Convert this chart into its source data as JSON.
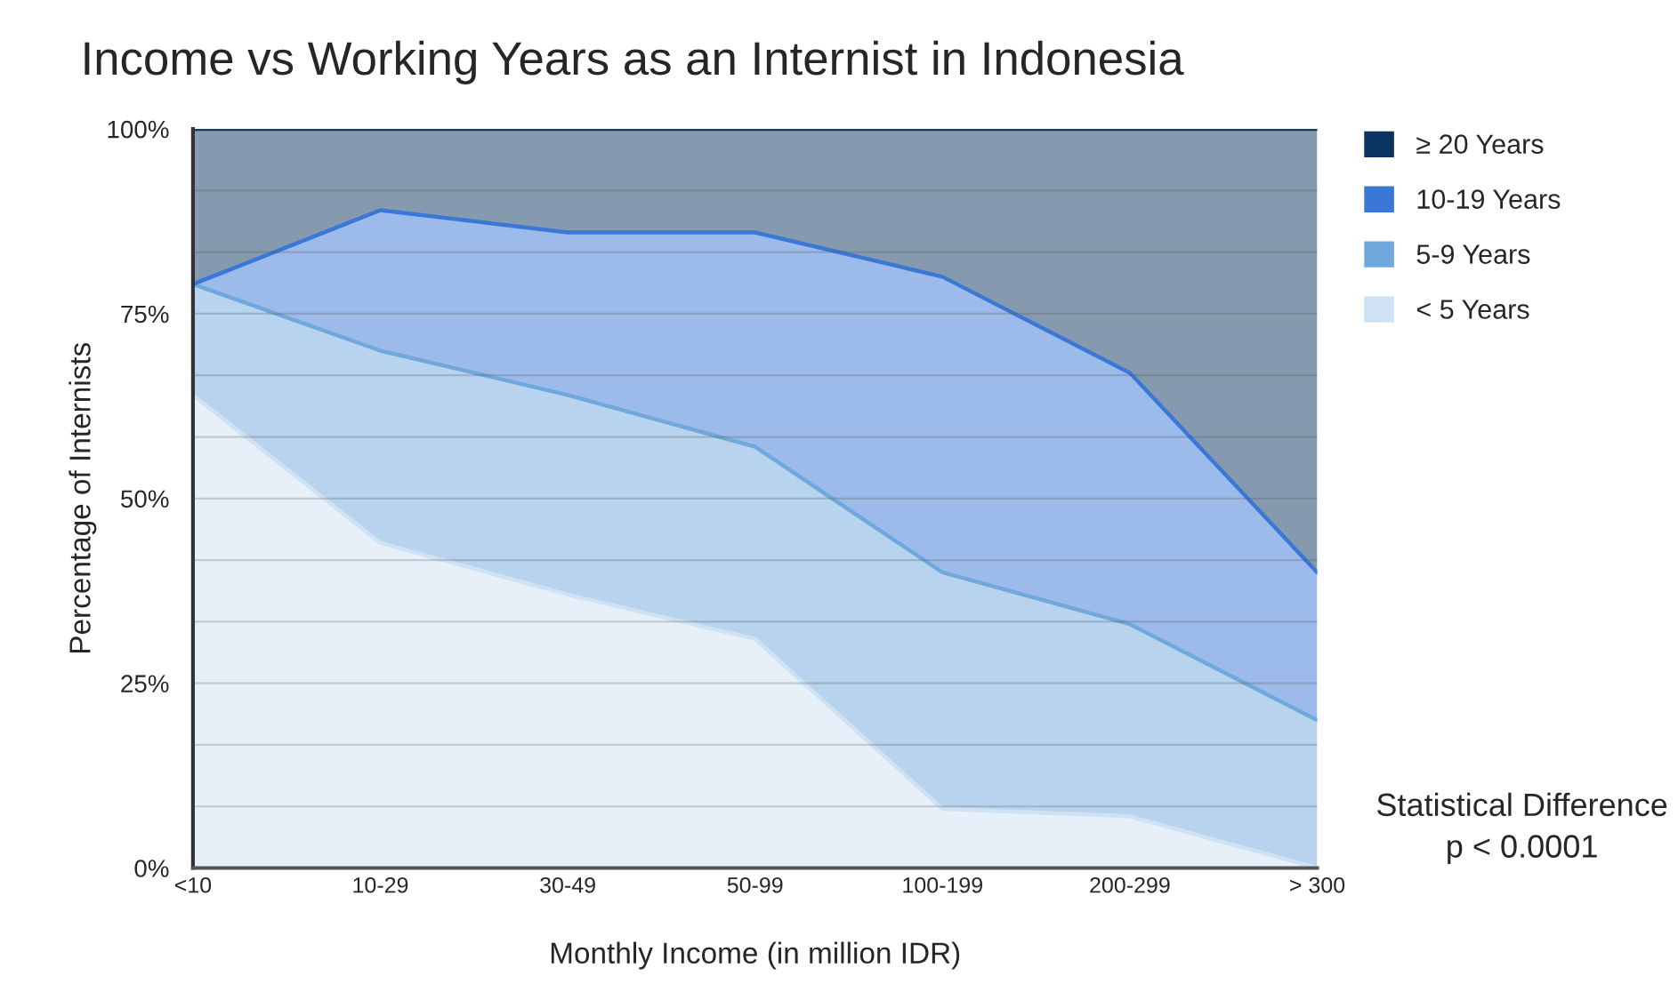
{
  "chart_data": {
    "type": "area",
    "stacked": true,
    "title": "Income vs Working Years as an Internist in Indonesia",
    "xlabel": "Monthly Income (in million IDR)",
    "ylabel": "Percentage of Internists",
    "categories": [
      "<10",
      "10-29",
      "30-49",
      "50-99",
      "100-199",
      "200-299",
      "> 300"
    ],
    "series": [
      {
        "name": "< 5 Years",
        "color": "#cfe2f3",
        "values": [
          64,
          44,
          37,
          31,
          8,
          7,
          0
        ]
      },
      {
        "name": "5-9 Years",
        "color": "#6fa8dc",
        "values": [
          15,
          26,
          27,
          26,
          32,
          26,
          20
        ]
      },
      {
        "name": "10-19 Years",
        "color": "#3a78d8",
        "values": [
          0,
          19,
          22,
          29,
          40,
          34,
          20
        ]
      },
      {
        "name": "≥ 20 Years",
        "color": "#0b3560",
        "values": [
          21,
          11,
          14,
          14,
          20,
          33,
          60
        ]
      }
    ],
    "ylim": [
      0,
      100
    ],
    "yticks": [
      {
        "value": 0,
        "label": "0%"
      },
      {
        "value": 8.33,
        "label": null
      },
      {
        "value": 16.67,
        "label": null
      },
      {
        "value": 25,
        "label": "25%"
      },
      {
        "value": 33.33,
        "label": null
      },
      {
        "value": 41.67,
        "label": null
      },
      {
        "value": 50,
        "label": "50%"
      },
      {
        "value": 58.33,
        "label": null
      },
      {
        "value": 66.67,
        "label": null
      },
      {
        "value": 75,
        "label": "75%"
      },
      {
        "value": 83.33,
        "label": null
      },
      {
        "value": 91.67,
        "label": null
      },
      {
        "value": 100,
        "label": "100%"
      }
    ],
    "grid": "y",
    "legend": "right",
    "annotations": [
      "Statistical Difference\np < 0.0001"
    ]
  }
}
